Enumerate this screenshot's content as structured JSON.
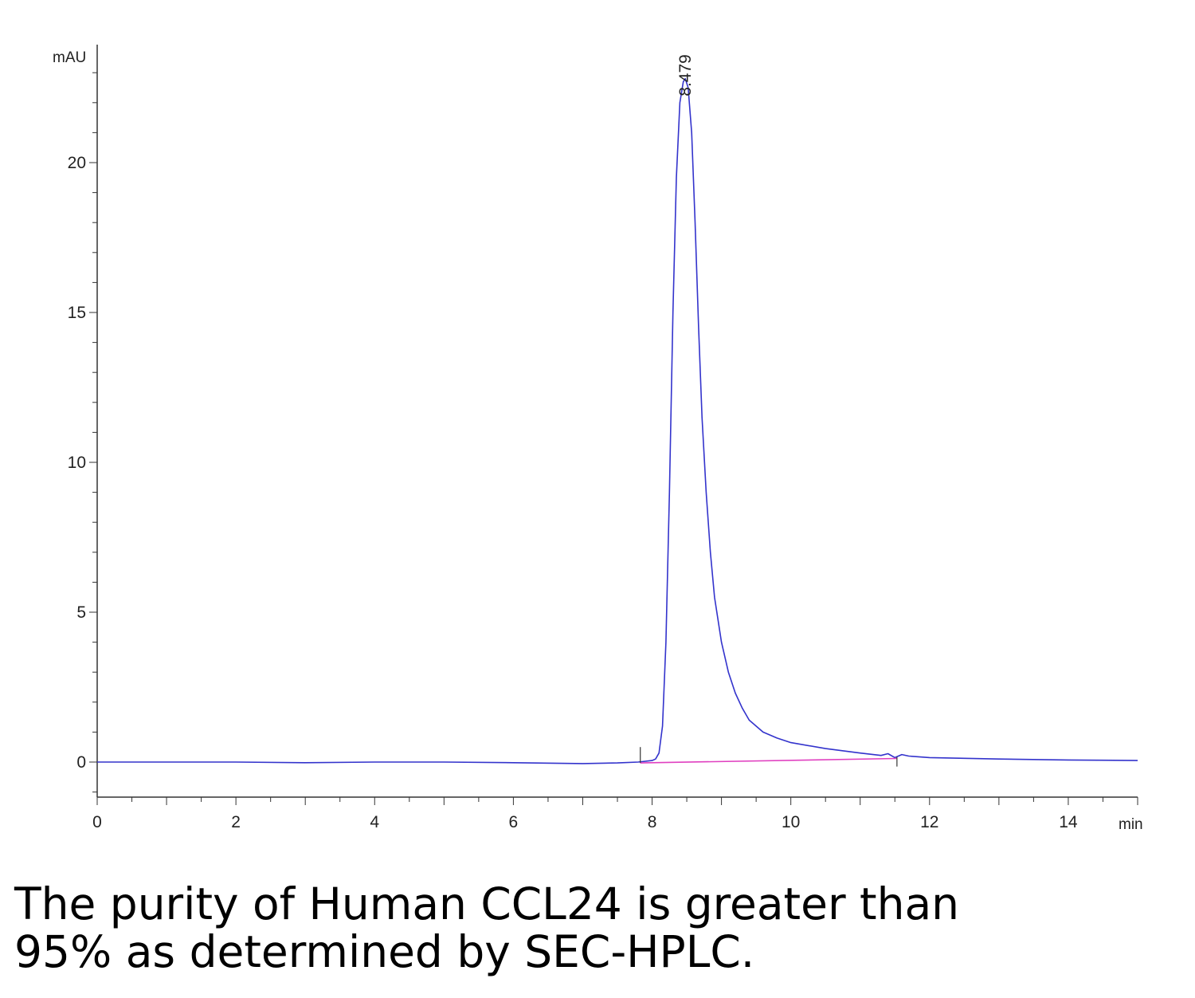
{
  "chart_data": {
    "type": "line",
    "xlabel": "min",
    "ylabel": "mAU",
    "xlim": [
      0,
      15
    ],
    "ylim": [
      -1.2,
      23.5
    ],
    "x_ticks": [
      0,
      2,
      4,
      6,
      8,
      10,
      12,
      14
    ],
    "x_minor_step": 0.5,
    "y_ticks": [
      0,
      5,
      10,
      15,
      20
    ],
    "y_minor_step": 1,
    "grid": false,
    "series": [
      {
        "color": "#3333cc",
        "x": [
          0,
          1,
          2,
          3,
          4,
          5,
          6,
          7,
          7.5,
          7.8,
          8.0,
          8.05,
          8.1,
          8.15,
          8.2,
          8.25,
          8.3,
          8.35,
          8.4,
          8.45,
          8.479,
          8.52,
          8.57,
          8.62,
          8.67,
          8.72,
          8.78,
          8.84,
          8.9,
          9.0,
          9.1,
          9.2,
          9.3,
          9.4,
          9.6,
          9.8,
          10.0,
          10.5,
          11.0,
          11.3,
          11.4,
          11.5,
          11.6,
          11.7,
          12.0,
          13.0,
          14.0,
          15.0
        ],
        "y": [
          0,
          0,
          0,
          -0.02,
          0,
          0,
          -0.02,
          -0.05,
          -0.03,
          0,
          0.05,
          0.1,
          0.3,
          1.2,
          4.0,
          9.0,
          15.0,
          19.5,
          22.0,
          22.7,
          22.8,
          22.5,
          21.0,
          18.0,
          14.5,
          11.5,
          9.0,
          7.0,
          5.5,
          4.0,
          3.0,
          2.3,
          1.8,
          1.4,
          1.0,
          0.8,
          0.65,
          0.45,
          0.3,
          0.22,
          0.28,
          0.15,
          0.25,
          0.2,
          0.15,
          0.1,
          0.07,
          0.05
        ]
      },
      {
        "name": "baseline",
        "color": "#e040c0",
        "x": [
          7.83,
          11.53
        ],
        "y": [
          -0.03,
          0.12
        ]
      }
    ],
    "annotations": [
      {
        "text": "8.479",
        "x": 8.479,
        "y": 22.8
      }
    ],
    "integration_marks": [
      7.83,
      11.53
    ]
  },
  "caption": {
    "line1": "The purity of Human CCL24 is greater than",
    "line2": "95% as determined by SEC-HPLC."
  }
}
